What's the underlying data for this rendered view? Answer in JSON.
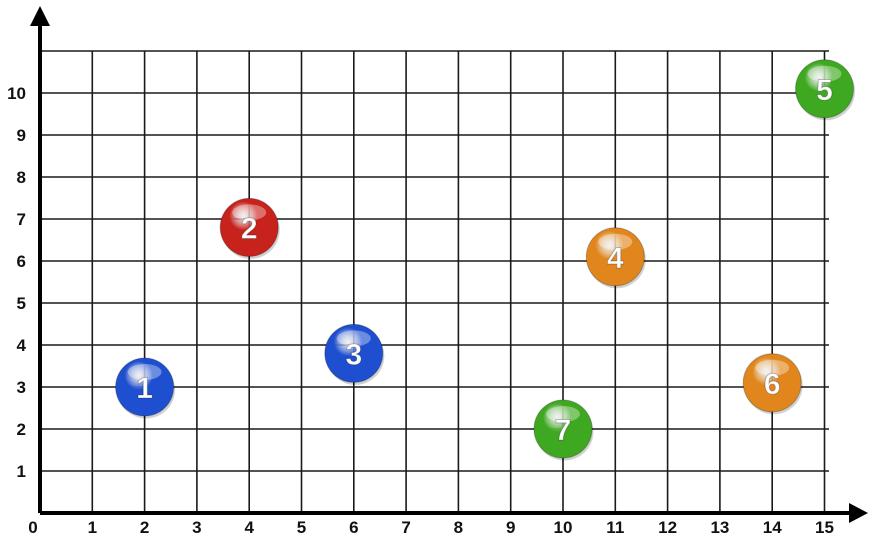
{
  "chart_data": {
    "type": "scatter",
    "title": "",
    "xlabel": "",
    "ylabel": "",
    "xlim": [
      0,
      15
    ],
    "ylim": [
      0,
      10
    ],
    "x_ticks": [
      "0",
      "1",
      "2",
      "3",
      "4",
      "5",
      "6",
      "7",
      "8",
      "9",
      "10",
      "11",
      "12",
      "13",
      "14",
      "15"
    ],
    "y_ticks": [
      "1",
      "2",
      "3",
      "4",
      "5",
      "6",
      "7",
      "8",
      "9",
      "10"
    ],
    "grid": true,
    "points": [
      {
        "label": "1",
        "x": 2,
        "y": 3,
        "color": "#1e4fd0"
      },
      {
        "label": "2",
        "x": 4,
        "y": 6.8,
        "color": "#c8221d"
      },
      {
        "label": "3",
        "x": 6,
        "y": 3.8,
        "color": "#1e4fd0"
      },
      {
        "label": "4",
        "x": 11,
        "y": 6.1,
        "color": "#e0861c"
      },
      {
        "label": "5",
        "x": 15,
        "y": 10.1,
        "color": "#3ea820"
      },
      {
        "label": "6",
        "x": 14,
        "y": 3.1,
        "color": "#e0861c"
      },
      {
        "label": "7",
        "x": 10,
        "y": 2,
        "color": "#3ea820"
      }
    ]
  }
}
